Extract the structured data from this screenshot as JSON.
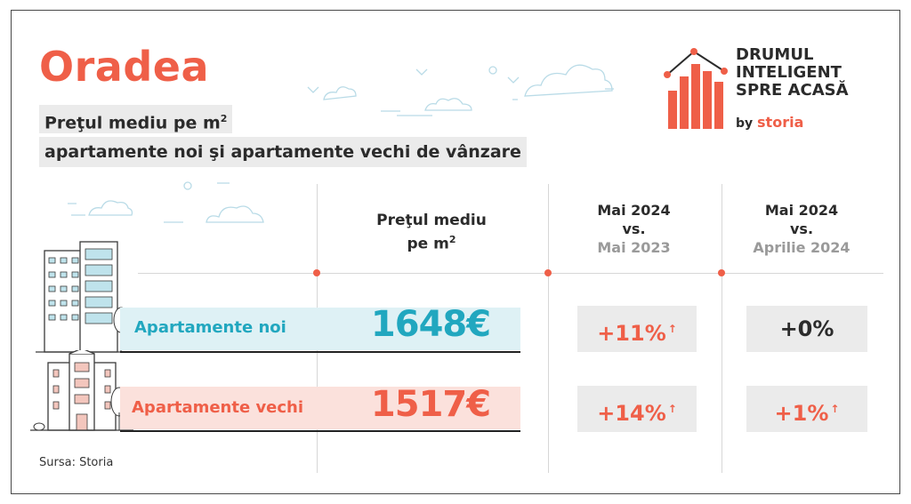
{
  "header": {
    "city": "Oradea",
    "subtitle_line1_main": "Preţul mediu pe m",
    "subtitle_line1_sup": "2",
    "subtitle_line2": "apartamente noi şi apartamente vechi de vânzare"
  },
  "brand": {
    "line1": "DRUMUL",
    "line2": "INTELIGENT",
    "line3": "SPRE ACASĂ",
    "by": "by",
    "storia": "storia"
  },
  "columns": {
    "price": {
      "line1": "Preţul mediu",
      "line2_main": "pe m",
      "line2_sup": "2"
    },
    "yoy": {
      "line1": "Mai 2024",
      "line2": "vs.",
      "line3": "Mai 2023"
    },
    "mom": {
      "line1": "Mai 2024",
      "line2": "vs.",
      "line3": "Aprilie 2024"
    }
  },
  "rows": [
    {
      "label": "Apartamente noi",
      "price": "1648€",
      "yoy": "+11%",
      "mom": "+0%"
    },
    {
      "label": "Apartamente vechi",
      "price": "1517€",
      "yoy": "+14%",
      "mom": "+1%"
    }
  ],
  "arrow_glyph": "↑",
  "source": "Sursa: Storia",
  "colors": {
    "accent": "#ef5f48",
    "teal": "#21a7bf",
    "pill": "#ebebeb",
    "band_new": "#def1f5",
    "band_old": "#fbe1dc"
  }
}
